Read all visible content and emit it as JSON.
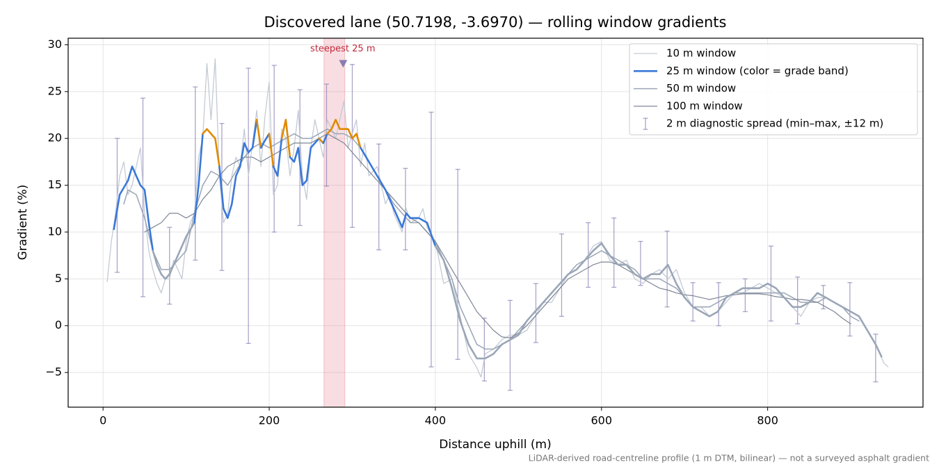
{
  "chart_data": {
    "type": "line",
    "title": "Discovered lane (50.7198, -3.6970) — rolling window gradients",
    "x_label": "Distance uphill (m)",
    "y_label": "Gradient (%)",
    "footnote": "LiDAR-derived road-centreline profile (1 m DTM, bilinear) — not a surveyed asphalt gradient",
    "xlim": [
      -42,
      987
    ],
    "ylim": [
      -8.7,
      30.7
    ],
    "xticks": [
      0,
      200,
      400,
      600,
      800
    ],
    "yticks": [
      {
        "value": -5,
        "label": "−5"
      },
      0,
      5,
      10,
      15,
      20,
      25,
      30
    ],
    "grid": true,
    "legend": "upper right",
    "highlight": {
      "span": [
        266,
        291
      ],
      "label": "steepest 25 m",
      "marker_x": 289,
      "marker_y": 28,
      "color": "#e58a96",
      "marker_color": "#8a7cb0",
      "label_color": "#c0283a"
    },
    "series": [
      {
        "name": "10 m window",
        "color": "#c3cad4",
        "width": 1.3,
        "x": [
          5,
          10,
          15,
          20,
          25,
          30,
          35,
          40,
          45,
          50,
          55,
          60,
          65,
          70,
          75,
          80,
          85,
          90,
          95,
          100,
          105,
          110,
          115,
          120,
          125,
          130,
          135,
          140,
          145,
          150,
          155,
          160,
          165,
          170,
          175,
          180,
          185,
          190,
          195,
          200,
          205,
          210,
          215,
          220,
          225,
          230,
          235,
          240,
          245,
          250,
          255,
          260,
          265,
          270,
          275,
          280,
          285,
          290,
          295,
          300,
          305,
          310,
          315,
          320,
          330,
          340,
          345,
          350,
          360,
          365,
          370,
          380,
          385,
          390,
          400,
          410,
          420,
          430,
          440,
          450,
          455,
          460,
          470,
          480,
          490,
          500,
          510,
          520,
          530,
          540,
          550,
          560,
          570,
          580,
          590,
          600,
          610,
          620,
          630,
          640,
          650,
          660,
          670,
          680,
          690,
          700,
          710,
          720,
          730,
          740,
          750,
          760,
          770,
          780,
          790,
          800,
          810,
          820,
          830,
          840,
          850,
          860,
          870,
          880,
          890,
          900,
          910,
          920,
          930,
          940,
          945
        ],
        "values": [
          4.7,
          9,
          12,
          16,
          17.5,
          14,
          15,
          17,
          19,
          12,
          8,
          6,
          4.5,
          3.5,
          5,
          5,
          7,
          6,
          5,
          9,
          11,
          12,
          18,
          20,
          28,
          22,
          28.5,
          16,
          11,
          12,
          16,
          18,
          17,
          21,
          16,
          19.5,
          23,
          17,
          22.5,
          26,
          14,
          15,
          21,
          20,
          16,
          19,
          23,
          16,
          13.5,
          19,
          22,
          20,
          18,
          22,
          21,
          20,
          22,
          24,
          19,
          20.5,
          22,
          17,
          19.5,
          16,
          17,
          13,
          14,
          12,
          10,
          12.5,
          11,
          11.5,
          12.5,
          10.5,
          9,
          4.5,
          5,
          1,
          -3,
          -4.5,
          -5.5,
          -3,
          -2.5,
          -1.5,
          -1,
          -1,
          -0.5,
          1,
          2.5,
          2.5,
          4,
          5.5,
          6,
          7,
          8.5,
          9,
          7,
          6.5,
          7,
          5,
          4.5,
          5.5,
          6,
          5,
          6,
          3.5,
          2,
          2,
          1,
          1.5,
          2.5,
          3.5,
          3.5,
          4,
          4.5,
          4,
          3.5,
          3,
          2,
          1,
          2.5,
          3,
          3,
          2.5,
          2,
          1.5,
          1,
          -0.5,
          -2,
          -4,
          -4.4
        ]
      },
      {
        "name": "25 m window (color = grade band)",
        "color": "#3a78d8",
        "width": 2.6,
        "bands": {
          "thresholds": [
            10,
            20
          ],
          "colors": [
            "#9aa6b7",
            "#3a78d8",
            "#e08a00"
          ]
        },
        "x": [
          13,
          20,
          30,
          35,
          40,
          45,
          50,
          55,
          60,
          65,
          70,
          75,
          80,
          90,
          100,
          110,
          115,
          120,
          125,
          130,
          135,
          140,
          145,
          150,
          155,
          160,
          165,
          170,
          175,
          180,
          185,
          190,
          195,
          200,
          205,
          210,
          215,
          220,
          225,
          230,
          235,
          240,
          245,
          250,
          255,
          260,
          265,
          270,
          275,
          280,
          285,
          290,
          295,
          300,
          305,
          310,
          320,
          330,
          340,
          350,
          360,
          365,
          370,
          380,
          390,
          400,
          410,
          420,
          430,
          440,
          450,
          460,
          470,
          480,
          490,
          500,
          510,
          520,
          530,
          540,
          550,
          560,
          570,
          580,
          590,
          600,
          610,
          620,
          630,
          640,
          650,
          660,
          670,
          680,
          690,
          700,
          710,
          720,
          730,
          740,
          750,
          760,
          770,
          780,
          790,
          800,
          810,
          820,
          830,
          840,
          850,
          860,
          870,
          880,
          890,
          900,
          910,
          920,
          930,
          937
        ],
        "values": [
          10.3,
          14,
          15.5,
          17,
          16,
          15,
          14.5,
          11,
          8,
          6.5,
          5.5,
          5,
          5.5,
          7.5,
          9.5,
          11,
          15,
          20.5,
          21,
          20.5,
          20,
          17,
          12.5,
          11.5,
          13,
          16,
          17,
          19.5,
          18.5,
          19,
          22,
          19,
          19.8,
          20.5,
          17,
          16,
          20,
          22,
          18,
          17.5,
          19,
          15,
          15.5,
          19,
          19.5,
          20,
          19.5,
          20.5,
          21,
          22,
          21,
          21,
          21,
          20,
          20.5,
          19,
          17.5,
          16,
          14.5,
          12.5,
          10.5,
          12,
          11.5,
          11.5,
          11,
          8.5,
          7,
          4,
          0.5,
          -2,
          -3.5,
          -3.5,
          -3,
          -2,
          -1.5,
          -1,
          0.5,
          1.5,
          2.5,
          3.5,
          4.5,
          5.5,
          6,
          7,
          8,
          8.8,
          7.5,
          6.5,
          6.5,
          5.5,
          5,
          5.5,
          5.5,
          6.5,
          4.5,
          3,
          2,
          1.5,
          1,
          1.5,
          3,
          3.5,
          4,
          4,
          4,
          4.5,
          4,
          3,
          2,
          2,
          2.5,
          3.5,
          3,
          2.5,
          2,
          1.5,
          1,
          -0.5,
          -2,
          -3.3
        ]
      },
      {
        "name": "50 m window",
        "color": "#9aa5b5",
        "width": 1.5,
        "x": [
          25,
          30,
          40,
          50,
          60,
          70,
          80,
          90,
          100,
          110,
          120,
          130,
          140,
          150,
          160,
          170,
          180,
          190,
          200,
          210,
          220,
          230,
          240,
          250,
          260,
          270,
          280,
          290,
          300,
          310,
          320,
          330,
          340,
          350,
          360,
          370,
          380,
          390,
          400,
          410,
          420,
          430,
          440,
          450,
          460,
          470,
          480,
          490,
          500,
          510,
          520,
          530,
          540,
          550,
          560,
          570,
          580,
          590,
          600,
          610,
          620,
          630,
          640,
          650,
          660,
          670,
          680,
          690,
          700,
          710,
          720,
          730,
          740,
          750,
          760,
          770,
          780,
          790,
          800,
          810,
          820,
          830,
          840,
          850,
          860,
          870,
          880,
          890,
          900,
          910
        ],
        "values": [
          13,
          14.5,
          14,
          11.5,
          8,
          6,
          6,
          7,
          8,
          12,
          15,
          16.5,
          16,
          15,
          16.5,
          18,
          19,
          19.5,
          19,
          19.5,
          20,
          20.5,
          20,
          20,
          20.5,
          21,
          20.5,
          20.5,
          20,
          19,
          17.5,
          16,
          14.5,
          13,
          12,
          11,
          11,
          10,
          9,
          7,
          5,
          2,
          0,
          -2,
          -2.5,
          -2.5,
          -2,
          -1.5,
          -0.5,
          0.5,
          1.5,
          2.5,
          3.5,
          4.5,
          5.5,
          6.5,
          7,
          7.5,
          8,
          7.5,
          7,
          6.5,
          6,
          5,
          5,
          5,
          4.5,
          4,
          3,
          2,
          2,
          2,
          2.5,
          3,
          3.5,
          3.5,
          3.5,
          3.5,
          3.5,
          3.5,
          3.5,
          3,
          2.5,
          2.5,
          2.5,
          3,
          2.5,
          2,
          1,
          0.5
        ]
      },
      {
        "name": "100 m window",
        "color": "#7d8594",
        "width": 1.2,
        "x": [
          50,
          60,
          70,
          80,
          90,
          100,
          110,
          120,
          130,
          140,
          150,
          160,
          170,
          180,
          190,
          200,
          210,
          220,
          230,
          240,
          250,
          260,
          270,
          280,
          290,
          300,
          310,
          320,
          330,
          340,
          350,
          360,
          370,
          380,
          390,
          400,
          410,
          420,
          430,
          440,
          450,
          460,
          470,
          480,
          490,
          500,
          510,
          520,
          530,
          540,
          550,
          560,
          570,
          580,
          590,
          600,
          610,
          620,
          630,
          640,
          650,
          660,
          670,
          680,
          690,
          700,
          710,
          720,
          730,
          740,
          750,
          760,
          770,
          780,
          790,
          800,
          810,
          820,
          830,
          840,
          850,
          860,
          870,
          880,
          890,
          900
        ],
        "values": [
          10,
          10.5,
          11,
          12,
          12,
          11.5,
          12,
          13.5,
          14.5,
          16,
          17,
          17.5,
          18,
          18,
          17.5,
          18,
          18.5,
          19,
          19.5,
          19.5,
          19.5,
          20,
          20.5,
          20,
          19.5,
          18.5,
          17.5,
          16.5,
          15.5,
          14.5,
          13.5,
          12.5,
          11.5,
          11,
          10,
          9,
          7.5,
          6,
          4.5,
          3,
          1.5,
          0.5,
          -0.5,
          -1.2,
          -1.3,
          -0.8,
          0,
          1,
          2,
          3,
          4,
          5,
          5.5,
          6,
          6.5,
          6.8,
          6.8,
          6.5,
          6,
          5.5,
          5,
          4.5,
          4,
          3.8,
          3.5,
          3.3,
          3.2,
          3,
          2.8,
          3,
          3.2,
          3.3,
          3.4,
          3.4,
          3.4,
          3.3,
          3.1,
          3,
          2.8,
          2.8,
          2.7,
          2.5,
          2,
          1.5,
          0.8,
          0.2
        ]
      }
    ],
    "error_bars": {
      "name": "2 m diagnostic spread (min–max, ±12 m)",
      "color": "#8f86b8",
      "x": [
        17,
        48,
        80,
        111,
        143,
        175,
        206,
        237,
        269,
        300,
        332,
        364,
        395,
        427,
        459,
        490,
        521,
        552,
        584,
        615,
        647,
        679,
        710,
        741,
        773,
        804,
        836,
        867,
        899,
        930
      ],
      "min": [
        5.7,
        3.1,
        2.3,
        7,
        5.9,
        -1.9,
        10,
        10.7,
        14.9,
        10.5,
        8.1,
        8.1,
        -4.4,
        -3.6,
        -5.9,
        -6.9,
        -1.8,
        1,
        4.1,
        4.1,
        4.3,
        2,
        0.5,
        0,
        1.5,
        0.5,
        0.2,
        1.8,
        -1.1,
        -6
      ],
      "max": [
        20,
        24.3,
        10.5,
        25.5,
        21.6,
        27.5,
        27.8,
        25.2,
        25.8,
        27.9,
        19.4,
        16.8,
        22.8,
        16.7,
        0.8,
        2.7,
        4.5,
        9.8,
        11,
        11.5,
        9,
        10.1,
        4.6,
        4.6,
        5,
        8.5,
        5.2,
        4.3,
        4.6,
        -0.9
      ]
    }
  }
}
